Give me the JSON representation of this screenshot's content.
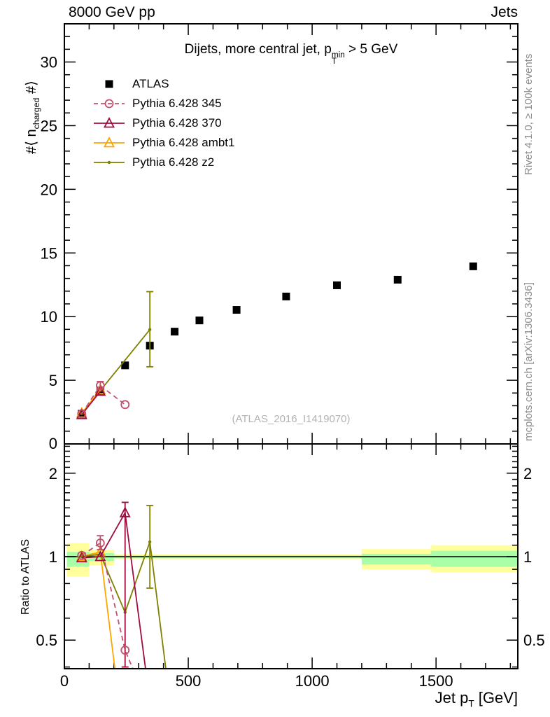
{
  "header": {
    "left": "8000 GeV pp",
    "right": "Jets"
  },
  "plot_title": {
    "prefix": "Dijets, more central jet, p",
    "sup": "min",
    "sub": "T",
    "suffix": " > 5 GeV"
  },
  "watermark": "(ATLAS_2016_I1419070)",
  "side_notes": {
    "top": "Rivet 4.1.0, ≥ 100k events",
    "bottom": "mcplots.cern.ch [arXiv:1306.3436]"
  },
  "axes": {
    "main_y_label": {
      "prefix": "#⟨ n",
      "sub": "charged",
      "suffix": " #⟩"
    },
    "ratio_y_label": "Ratio to ATLAS",
    "x_label": {
      "prefix": "Jet p",
      "sub": "T",
      "suffix": " [GeV]"
    },
    "x_ticks": [
      {
        "v": 0,
        "label": "0"
      },
      {
        "v": 500,
        "label": "500"
      },
      {
        "v": 1000,
        "label": "1000"
      },
      {
        "v": 1500,
        "label": "1500"
      }
    ],
    "x_minor_step": 100,
    "main_y_ticks": [
      {
        "v": 0,
        "label": "0"
      },
      {
        "v": 5,
        "label": "5"
      },
      {
        "v": 10,
        "label": "10"
      },
      {
        "v": 15,
        "label": "15"
      },
      {
        "v": 20,
        "label": "20"
      },
      {
        "v": 25,
        "label": "25"
      },
      {
        "v": 30,
        "label": "30"
      }
    ],
    "main_y_minor_step": 1,
    "ratio_y_ticks": [
      {
        "v": 0.5,
        "label": "0.5"
      },
      {
        "v": 1,
        "label": "1"
      },
      {
        "v": 2,
        "label": "2"
      }
    ],
    "ratio_y_minors": [
      0.4,
      0.6,
      0.7,
      0.8,
      0.9,
      1.1,
      1.2,
      1.3,
      1.4,
      1.5,
      1.6,
      1.7,
      1.8,
      1.9,
      2.1,
      2.2,
      2.3,
      2.4,
      2.5
    ]
  },
  "legend": [
    {
      "label": "ATLAS",
      "color": "#000000",
      "marker": "square-filled",
      "line": "none"
    },
    {
      "label": "Pythia 6.428 345",
      "color": "#c2516c",
      "marker": "circle-open",
      "line": "dashed"
    },
    {
      "label": "Pythia 6.428 370",
      "color": "#a00c3c",
      "marker": "triangle-open",
      "line": "solid"
    },
    {
      "label": "Pythia 6.428 ambt1",
      "color": "#ffa500",
      "marker": "triangle-open",
      "line": "solid"
    },
    {
      "label": "Pythia 6.428 z2",
      "color": "#808000",
      "marker": "dot",
      "line": "solid"
    }
  ],
  "colors": {
    "band_yellow": "#ffff9e",
    "band_green": "#a8ffa8",
    "frame": "#000000"
  },
  "chart_data": [
    {
      "type": "scatter",
      "title": "Dijets, more central jet, pT^min > 5 GeV",
      "xlabel": "Jet pT [GeV]",
      "ylabel": "#<n_charged#>",
      "xlim": [
        0,
        1830
      ],
      "ylim": [
        0,
        33
      ],
      "grid": false,
      "series": [
        {
          "name": "ATLAS",
          "color": "#000000",
          "line": "none",
          "marker": "square-filled",
          "x": [
            70,
            145,
            245,
            345,
            445,
            545,
            695,
            895,
            1100,
            1345,
            1650
          ],
          "y": [
            2.37,
            4.19,
            6.17,
            7.72,
            8.82,
            9.7,
            10.53,
            11.58,
            12.46,
            12.9,
            13.95
          ]
        },
        {
          "name": "Pythia 6.428 z2",
          "color": "#808000",
          "line": "solid",
          "marker": "dot",
          "x": [
            70,
            145,
            345
          ],
          "y": [
            2.37,
            4.19,
            8.98
          ],
          "errors": [
            {
              "x": 345,
              "lo": 6.06,
              "hi": 11.96
            }
          ]
        },
        {
          "name": "Pythia 6.428 ambt1",
          "color": "#ffa500",
          "line": "solid",
          "marker": "triangle-open",
          "x": [
            70,
            145
          ],
          "y": [
            2.42,
            4.27
          ]
        },
        {
          "name": "Pythia 6.428 370",
          "color": "#a00c3c",
          "line": "solid",
          "marker": "triangle-open",
          "x": [
            70,
            145
          ],
          "y": [
            2.3,
            4.13
          ]
        },
        {
          "name": "Pythia 6.428 345",
          "color": "#c2516c",
          "line": "dashed",
          "marker": "circle-open",
          "x": [
            70,
            145,
            245
          ],
          "y": [
            2.37,
            4.58,
            3.09
          ],
          "errors": [
            {
              "x": 145,
              "lo": 4.3,
              "hi": 4.9
            }
          ]
        }
      ]
    },
    {
      "type": "line",
      "ylabel": "Ratio to ATLAS",
      "yscale": "log",
      "xlim": [
        0,
        1830
      ],
      "ylim": [
        0.394,
        2.55
      ],
      "unity_line": true,
      "bands": [
        {
          "x1": 10,
          "x2": 100,
          "yellow": [
            0.85,
            1.12
          ],
          "green": [
            0.92,
            1.04
          ]
        },
        {
          "x1": 100,
          "x2": 200,
          "yellow": [
            0.93,
            1.06
          ],
          "green": [
            0.965,
            1.03
          ]
        },
        {
          "x1": 200,
          "x2": 1200,
          "yellow": [
            0.98,
            1.02
          ],
          "green": [
            0.99,
            1.01
          ]
        },
        {
          "x1": 1200,
          "x2": 1480,
          "yellow": [
            0.9,
            1.065
          ],
          "green": [
            0.937,
            1.024
          ]
        },
        {
          "x1": 1480,
          "x2": 1830,
          "yellow": [
            0.88,
            1.1
          ],
          "green": [
            0.92,
            1.05
          ]
        }
      ],
      "series": [
        {
          "name": "Pythia 6.428 ambt1",
          "color": "#ffa500",
          "line": "solid",
          "marker": "triangle-open",
          "x": [
            70,
            145,
            245
          ],
          "y": [
            1.0,
            1.04,
            0.2
          ]
        },
        {
          "name": "Pythia 6.428 z2",
          "color": "#808000",
          "line": "solid",
          "marker": "dot",
          "x": [
            70,
            145,
            245,
            345,
            445
          ],
          "y": [
            1.0,
            1.02,
            0.63,
            1.13,
            0.22
          ],
          "errors": [
            {
              "x": 345,
              "lo": 0.77,
              "hi": 1.53
            }
          ]
        },
        {
          "name": "Pythia 6.428 370",
          "color": "#a00c3c",
          "line": "solid",
          "marker": "triangle-open",
          "x": [
            70,
            145,
            245,
            345
          ],
          "y": [
            0.99,
            1.0,
            1.44,
            0.3
          ],
          "errors": [
            {
              "x": 245,
              "lo": 0.4,
              "hi": 1.57
            }
          ]
        },
        {
          "name": "Pythia 6.428 345",
          "color": "#c2516c",
          "line": "dashed",
          "marker": "circle-open",
          "x": [
            70,
            145,
            245,
            345
          ],
          "y": [
            1.01,
            1.12,
            0.46,
            0.28
          ],
          "errors": [
            {
              "x": 145,
              "lo": 1.06,
              "hi": 1.19
            }
          ]
        }
      ]
    }
  ]
}
